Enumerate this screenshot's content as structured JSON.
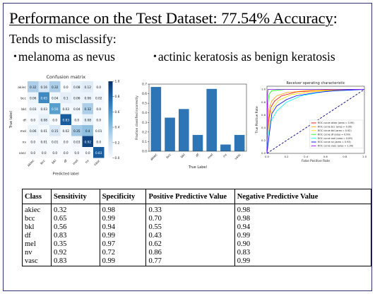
{
  "slide": {
    "title": "Performance on the Test Dataset: 77.54% Accuracy",
    "title_colon": ":",
    "subtitle": "Tends to misclassify:",
    "bullets": [
      "melanoma as nevus",
      "actinic keratosis as benign keratosis"
    ],
    "bullet_glyph": "•"
  },
  "table": {
    "headers": [
      "Class",
      "Sensitivity",
      "Specificity",
      "Positive Predictive Value",
      "Negative Predictive Value"
    ],
    "rows": [
      [
        "akiec",
        "0.32",
        "0.98",
        "0.33",
        "0.98"
      ],
      [
        "bcc",
        "0.65",
        "0.99",
        "0.70",
        "0.98"
      ],
      [
        "bkl",
        "0.56",
        "0.94",
        "0.55",
        "0.94"
      ],
      [
        "df",
        "0.83",
        "0.99",
        "0.43",
        "0.99"
      ],
      [
        "mel",
        "0.35",
        "0.97",
        "0.62",
        "0.90"
      ],
      [
        "nv",
        "0.92",
        "0.72",
        "0.86",
        "0.83"
      ],
      [
        "vasc",
        "0.83",
        "0.99",
        "0.77",
        "0.99"
      ]
    ]
  },
  "chart_data": [
    {
      "type": "heatmap",
      "title": "Confusion matrix",
      "xlabel": "Predicted label",
      "ylabel": "True label",
      "labels": [
        "akiec",
        "bcc",
        "bkl",
        "df",
        "mel",
        "nv",
        "vasc"
      ],
      "matrix": [
        [
          0.32,
          0.16,
          0.32,
          0.0,
          0.08,
          0.12,
          0.0
        ],
        [
          0.06,
          0.65,
          0.04,
          0.1,
          0.06,
          0.06,
          0.02
        ],
        [
          0.03,
          0.03,
          0.56,
          0.03,
          0.04,
          0.32,
          0.0
        ],
        [
          0.0,
          0.08,
          0.0,
          0.83,
          0.0,
          0.08,
          0.0
        ],
        [
          0.06,
          0.01,
          0.15,
          0.02,
          0.35,
          0.4,
          0.01
        ],
        [
          0.0,
          0.01,
          0.01,
          0.0,
          0.03,
          0.92,
          0.0
        ],
        [
          0.0,
          0.0,
          0.0,
          0.0,
          0.0,
          0.0,
          0.83
        ]
      ],
      "display_labels": [
        [
          "0.32",
          "0.16",
          "0.32",
          "0.0",
          "0.08",
          "0.12",
          "0.0"
        ],
        [
          "0.06",
          "0.65",
          "0.04",
          "0.1",
          "0.06",
          "0.06",
          "0.02"
        ],
        [
          "0.03",
          "0.03",
          "0.56",
          "0.03",
          "0.04",
          "0.32",
          "0.0"
        ],
        [
          "0.0",
          "0.08",
          "0.0",
          "0.83",
          "0.0",
          "0.08",
          "0.0"
        ],
        [
          "0.06",
          "0.01",
          "0.15",
          "0.02",
          "0.35",
          "0.4",
          "0.01"
        ],
        [
          "0.0",
          "0.01",
          "0.01",
          "0.0",
          "0.03",
          "0.92",
          "0.0"
        ],
        [
          "0.0",
          "0.0",
          "0.0",
          "0.0",
          "0.0",
          "0.0",
          "0.83"
        ]
      ],
      "colorbar_ticks": [
        "1.0",
        "0.8",
        "0.6",
        "0.4",
        "0.2",
        "0.0"
      ],
      "colors": {
        "low": "#f7fbff",
        "high": "#08306b"
      }
    },
    {
      "type": "bar",
      "categories": [
        "akiec",
        "bcc",
        "bkl",
        "df",
        "mel",
        "nv",
        "vasc"
      ],
      "values": [
        0.67,
        0.35,
        0.44,
        0.17,
        0.65,
        0.07,
        0.17
      ],
      "xlabel": "True Label",
      "ylabel": "Fraction classified incorrectly",
      "ylim": [
        0,
        0.7
      ],
      "yticks": [
        "0.0",
        "0.1",
        "0.2",
        "0.3",
        "0.4",
        "0.5",
        "0.6",
        "0.7"
      ],
      "color": "#2e75b6"
    },
    {
      "type": "line",
      "title": "Receiver operating characteristic",
      "xlabel": "False Positive Rate",
      "ylabel": "True Positive Rate",
      "xlim": [
        0,
        1.0
      ],
      "ylim": [
        0,
        1.05
      ],
      "ticks": [
        "0.0",
        "0.2",
        "0.4",
        "0.6",
        "0.8",
        "1.0"
      ],
      "legend_placement": "lower right",
      "series": [
        {
          "name": "ROC curve akiec (area = 0.95)",
          "color": "#ff0000",
          "x": [
            0,
            0.01,
            0.02,
            0.04,
            0.08,
            0.15,
            0.3,
            0.6,
            1
          ],
          "y": [
            0,
            0.3,
            0.55,
            0.72,
            0.82,
            0.9,
            0.96,
            0.99,
            1
          ]
        },
        {
          "name": "ROC curve bcc (area = 0.95)",
          "color": "#ffa500",
          "x": [
            0,
            0.01,
            0.02,
            0.05,
            0.1,
            0.2,
            0.4,
            1
          ],
          "y": [
            0,
            0.45,
            0.7,
            0.82,
            0.9,
            0.95,
            0.98,
            1
          ]
        },
        {
          "name": "ROC curve bkl (area = 0.92)",
          "color": "#ffdd00",
          "x": [
            0,
            0.01,
            0.03,
            0.07,
            0.12,
            0.25,
            0.5,
            1
          ],
          "y": [
            0,
            0.3,
            0.58,
            0.73,
            0.83,
            0.92,
            0.97,
            1
          ]
        },
        {
          "name": "ROC curve df (area = 0.99)",
          "color": "#00ff00",
          "x": [
            0,
            0.01,
            0.02,
            0.05,
            0.2,
            1
          ],
          "y": [
            0,
            0.75,
            0.92,
            0.98,
            1,
            1
          ]
        },
        {
          "name": "ROC curve mel (area = 0.89)",
          "color": "#00ffff",
          "x": [
            0,
            0.01,
            0.04,
            0.1,
            0.2,
            0.35,
            0.6,
            1
          ],
          "y": [
            0,
            0.25,
            0.5,
            0.66,
            0.8,
            0.9,
            0.97,
            1
          ]
        },
        {
          "name": "ROC curve nv (area = 0.93)",
          "color": "#0000ff",
          "x": [
            0,
            0.05,
            0.1,
            0.2,
            0.3,
            0.5,
            0.7,
            1
          ],
          "y": [
            0,
            0.62,
            0.74,
            0.84,
            0.9,
            0.95,
            0.98,
            1
          ]
        },
        {
          "name": "ROC curve vasc (area = 1.00)",
          "color": "#9900ff",
          "x": [
            0,
            0.005,
            0.01,
            0.05,
            1
          ],
          "y": [
            0,
            0.9,
            1,
            1,
            1
          ]
        }
      ],
      "diagonal": {
        "color": "#00008b",
        "style": "dashed"
      }
    }
  ]
}
